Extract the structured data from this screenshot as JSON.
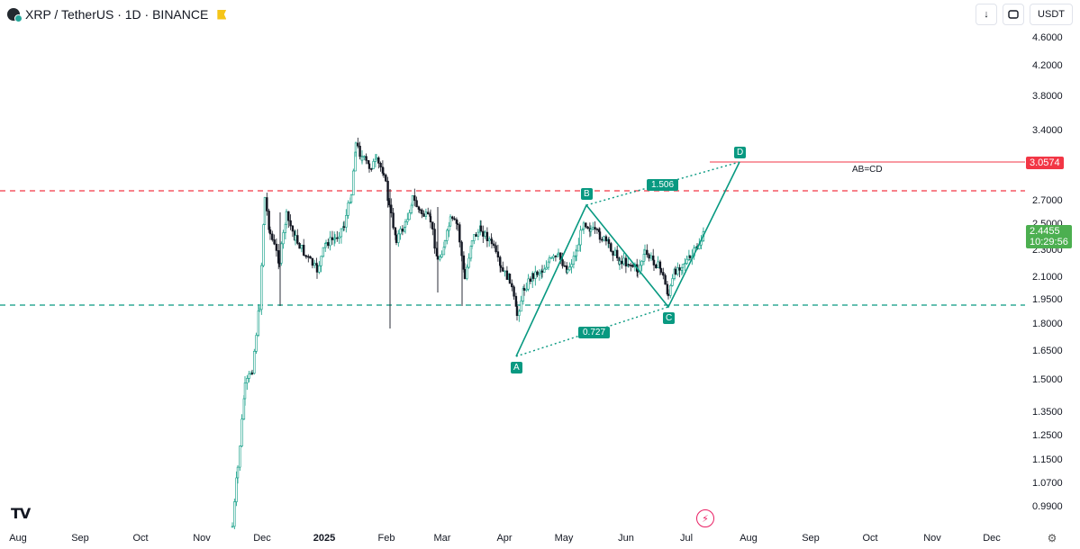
{
  "header": {
    "title": "XRP / TetherUS · 1D · BINANCE"
  },
  "toolbar": {
    "down_label": "↓",
    "currency_label": "USDT"
  },
  "price_axis": [
    "4.6000",
    "4.2000",
    "3.8000",
    "3.4000",
    "2.7000",
    "2.5000",
    "2.3000",
    "2.1000",
    "1.9500",
    "1.8000",
    "1.6500",
    "1.5000",
    "1.3500",
    "1.2500",
    "1.1500",
    "1.0700",
    "0.9900"
  ],
  "time_axis": [
    "Aug",
    "Sep",
    "Oct",
    "Nov",
    "Dec",
    "2025",
    "Feb",
    "Mar",
    "Apr",
    "May",
    "Jun",
    "Jul",
    "Aug",
    "Sep",
    "Oct",
    "Nov",
    "Dec"
  ],
  "price_labels": {
    "target": "3.0574",
    "last_price": "2.4455",
    "countdown": "10:29:56"
  },
  "pattern": {
    "name": "AB=CD",
    "points": [
      "A",
      "B",
      "C",
      "D"
    ],
    "ratio_ac": "0.727",
    "ratio_bd": "1.506"
  },
  "colors": {
    "red_level": "#f23645",
    "green_level": "#089981",
    "up_candle": "#089981",
    "down_candle": "#131722",
    "last_price_bg": "#4caf50"
  },
  "icons": [
    "tradingview-logo-icon",
    "gear-icon",
    "bolt-icon",
    "down-arrow-icon",
    "screenshot-icon"
  ]
}
